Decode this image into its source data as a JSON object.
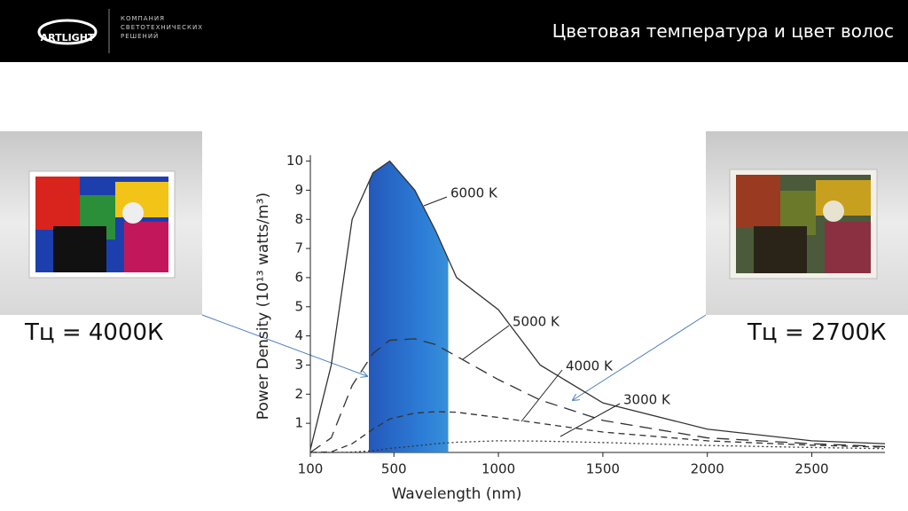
{
  "header": {
    "logo": "ARTLIGHT",
    "company": [
      "КОМПАНИЯ",
      "СВЕТОТЕХНИЧЕСКИХ",
      "РЕШЕНИЙ"
    ],
    "title": "Цветовая температура и цвет волос"
  },
  "captions": {
    "left": "Тц = 4000К",
    "right": "Тц = 2700К"
  },
  "chart_data": {
    "type": "line",
    "xlabel": "Wavelength (nm)",
    "ylabel": "Power Density (10¹³ watts/m³)",
    "x": [
      100,
      200,
      300,
      400,
      480,
      600,
      700,
      800,
      1000,
      1200,
      1500,
      2000,
      2500,
      2850
    ],
    "series": [
      {
        "name": "6000 K",
        "color": "#333333",
        "dash": "solid",
        "values": [
          0.1,
          3,
          8,
          9.6,
          10,
          9,
          7.6,
          6,
          4.9,
          3,
          1.7,
          0.8,
          0.4,
          0.3
        ]
      },
      {
        "name": "5000 K",
        "color": "#333333",
        "dash": "long",
        "values": [
          0,
          0.5,
          2.3,
          3.4,
          3.85,
          3.9,
          3.7,
          3.3,
          2.5,
          1.8,
          1.1,
          0.5,
          0.3,
          0.2
        ]
      },
      {
        "name": "4000 K",
        "color": "#333333",
        "dash": "medium",
        "values": [
          0,
          0.02,
          0.3,
          0.8,
          1.15,
          1.35,
          1.4,
          1.38,
          1.2,
          1,
          0.7,
          0.4,
          0.25,
          0.18
        ]
      },
      {
        "name": "3000 K",
        "color": "#333333",
        "dash": "dotted",
        "values": [
          0,
          0,
          0.01,
          0.06,
          0.14,
          0.22,
          0.3,
          0.35,
          0.4,
          0.39,
          0.34,
          0.24,
          0.17,
          0.13
        ]
      }
    ],
    "visible_band": [
      380,
      760
    ],
    "xlim": [
      100,
      2850
    ],
    "ylim": [
      0,
      10.2
    ],
    "xticks": [
      100,
      500,
      1000,
      1500,
      2000,
      2500
    ],
    "yticks": [
      1,
      2,
      3,
      4,
      5,
      6,
      7,
      8,
      9,
      10
    ]
  }
}
